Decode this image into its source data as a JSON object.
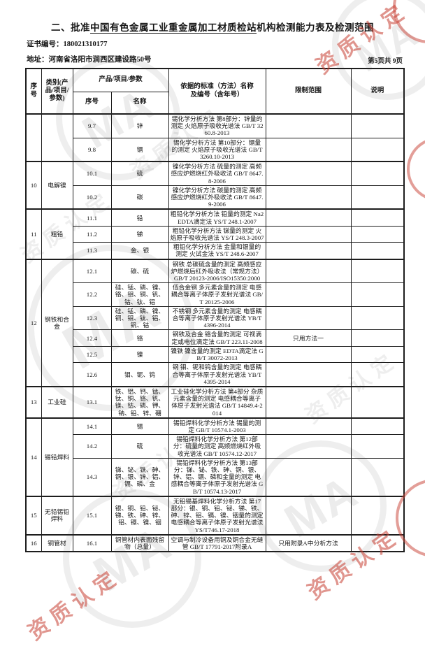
{
  "page": {
    "title_prefix": "二、批准",
    "title_org": "中国有色金属工业重金属加工材质检站",
    "title_suffix": "机构检测能力表及检测范围",
    "cert_label": "证书编号：",
    "cert_no": "180021310177",
    "addr_label": "地址：",
    "address": "河南省洛阳市涧西区建设路50号",
    "page_indicator": "第5页共 9页"
  },
  "table": {
    "headers": {
      "seq": "序号",
      "category": "类别(产品/项目/参数)",
      "ppp": "产品/项目/参数",
      "sub_seq": "序号",
      "sub_name": "名称",
      "standard_l1": "依据的标准（方法）名称",
      "standard_l2": "及编号（含年号）",
      "limit": "限制范围",
      "note": "说明"
    },
    "sections": [
      {
        "no": "",
        "category": "",
        "items": [
          {
            "no": "9.7",
            "name": "锌",
            "standard": "锡化学分析方法 第8部分：锌量的测定 火焰原子吸收光谱法 GB/T 3260.8-2013",
            "limit": "",
            "note": ""
          },
          {
            "no": "9.8",
            "name": "镉",
            "standard": "锡化学分析方法 第10部分：镉量的测定 火焰原子吸收光谱法 GB/T 3260.10-2013",
            "limit": "",
            "note": ""
          }
        ]
      },
      {
        "no": "10",
        "category": "电解镍",
        "items": [
          {
            "no": "10.1",
            "name": "硫",
            "standard": "镍化学分析方法 硫量的测定 高频感应炉燃烧红外吸收法 GB/T 8647.8-2006",
            "limit": "",
            "note": ""
          },
          {
            "no": "10.2",
            "name": "碳",
            "standard": "镍化学分析方法 碳量的测定 高频感应炉燃烧红外吸收法 GB/T 8647.9-2006",
            "limit": "",
            "note": ""
          }
        ]
      },
      {
        "no": "11",
        "category": "粗铅",
        "items": [
          {
            "no": "11.1",
            "name": "铅",
            "standard": "粗铅化学分析方法 铅量的测定 Na2EDTA滴定法 YS/T 248.1-2007",
            "limit": "",
            "note": ""
          },
          {
            "no": "11.2",
            "name": "锑",
            "standard": "粗铅化学分析方法 锑量的测定 火焰原子吸收光谱法 YS/T 248.3-2007",
            "limit": "",
            "note": ""
          },
          {
            "no": "11.3",
            "name": "金、银",
            "standard": "粗铅化学分析方法 金量和银量的测定 火试金法 YS/T 248.6-2007",
            "limit": "",
            "note": ""
          }
        ]
      },
      {
        "no": "12",
        "category": "钢铁和合金",
        "items": [
          {
            "no": "12.1",
            "name": "碳、硫",
            "standard": "钢铁 总碳硫含量的测定 高频感应炉燃烧后红外吸收法（常规方法） GB/T 20123-2006/ISO15350:2000",
            "limit": "",
            "note": ""
          },
          {
            "no": "12.2",
            "name": "硅、锰、磷、镍、铬、钼、铜、钒、钴、钛、铝",
            "standard": "低合金钢 多元素含量的测定 电感耦合等离子体原子发射光谱法 GB/T 20125-2006",
            "limit": "",
            "note": ""
          },
          {
            "no": "12.3",
            "name": "硅、锰、磷、镍、铜、钼、钛、铝、钒、钴",
            "standard": "不锈钢 多元素含量的测定 电感耦合等离子体原子发射光谱法 YB/T 4396-2014",
            "limit": "",
            "note": ""
          },
          {
            "no": "12.4",
            "name": "铬",
            "standard": "钢铁及合金 铬含量的测定 可视滴定或电位滴定法 GB/T 223.11-2008",
            "limit": "只用方法一",
            "note": ""
          },
          {
            "no": "12.5",
            "name": "镍",
            "standard": "镍铁 镍含量的测定 EDTA滴定法 GB/T 30072-2013",
            "limit": "",
            "note": ""
          },
          {
            "no": "12.6",
            "name": "钼、铌、钨",
            "standard": "钢 钼、铌和钨含量的测定 电感耦合等离子体原子发射光谱法 YB/T 4395-2014",
            "limit": "",
            "note": ""
          }
        ]
      },
      {
        "no": "13",
        "category": "工业硅",
        "items": [
          {
            "no": "13.1",
            "name": "铁、铝、钙、锰、钛、铜、铬、钒、镁、钴、磷、钾、钠、铅、锌、硼",
            "standard": "工业硅化学分析方法 第4部分 杂质元素含量的测定 电感耦合等离子体原子发射光谱法 GB/T 14849.4-2014",
            "limit": "",
            "note": ""
          }
        ]
      },
      {
        "no": "14",
        "category": "锡铅焊料",
        "items": [
          {
            "no": "14.1",
            "name": "锡",
            "standard": "锡铅焊料化学分析方法 锡量的测定 GB/T 10574.1-2003",
            "limit": "",
            "note": ""
          },
          {
            "no": "14.2",
            "name": "硫",
            "standard": "锡铅焊料化学分析方法 第12部分：硫量的测定 高频燃烧红外吸收光谱法 GB/T 10574.12-2017",
            "limit": "",
            "note": ""
          },
          {
            "no": "14.3",
            "name": "锑、铋、铁、砷、铜、银、锌、铝、镉、磷、金",
            "standard": "锡铅焊料化学分析方法 第13部分：锑、铋、铁、砷、铜、银、锌、铝、镉、磷和金量的测定 电感耦合等离子体原子发射光谱法 GB/T 10574.13-2017",
            "limit": "",
            "note": ""
          }
        ]
      },
      {
        "no": "15",
        "category": "无铅锡铅焊料",
        "items": [
          {
            "no": "15.1",
            "name": "银、铜、铅、铋、锑、铁、砷、锌、铝、镉、镍、铟",
            "standard": "无铅锡基焊料化学分析方法 第17部分：银、铜、铅、铋、锑、铁、砷、锌、铝、镉、镍、铟量的测定 电感耦合等离子体原子发射光谱法 YS/T746.17-2018",
            "limit": "",
            "note": ""
          }
        ]
      },
      {
        "no": "16",
        "category": "铜管材",
        "items": [
          {
            "no": "16.1",
            "name": "铜管材内表面残留物（总量）",
            "standard": "空调与制冷设备用铜及铜合金无缝管 GB/T 17791-2017附录A",
            "limit": "只用附录A中分析方法",
            "note": ""
          }
        ]
      }
    ]
  },
  "watermarks": {
    "stamp_text": "资质认定",
    "logo_text": "MA",
    "red_color": "#c73e32",
    "gray_color": "#464646"
  }
}
